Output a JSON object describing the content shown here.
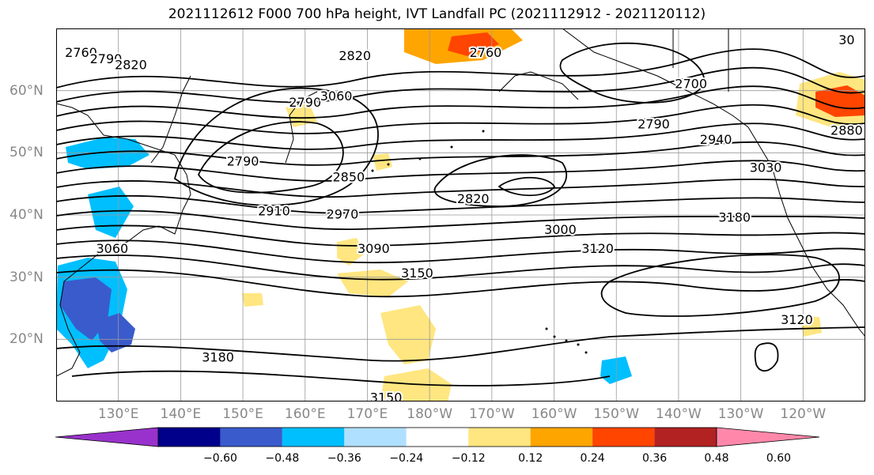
{
  "title": "2021112612 F000 700 hPa height, IVT Landfall PC (2021112912 - 2021120112)",
  "map": {
    "lon_range": [
      120,
      250
    ],
    "lat_range": [
      10,
      70
    ],
    "x_ticks": [
      "130°E",
      "140°E",
      "150°E",
      "160°E",
      "170°E",
      "180°W",
      "170°W",
      "160°W",
      "150°W",
      "140°W",
      "130°W",
      "120°W"
    ],
    "x_tick_lons": [
      130,
      140,
      150,
      160,
      170,
      180,
      190,
      200,
      210,
      220,
      230,
      240
    ],
    "y_ticks": [
      "20°N",
      "30°N",
      "40°N",
      "50°N",
      "60°N"
    ],
    "y_tick_lats": [
      20,
      30,
      40,
      50,
      60
    ],
    "contour_labels": [
      {
        "text": "2760",
        "lon": 124,
        "lat": 66
      },
      {
        "text": "2790",
        "lon": 128,
        "lat": 65
      },
      {
        "text": "2820",
        "lon": 132,
        "lat": 64
      },
      {
        "text": "2820",
        "lon": 168,
        "lat": 65.5
      },
      {
        "text": "2760",
        "lon": 189,
        "lat": 66
      },
      {
        "text": "2790",
        "lon": 160,
        "lat": 58
      },
      {
        "text": "3060",
        "lon": 165,
        "lat": 59
      },
      {
        "text": "2790",
        "lon": 150,
        "lat": 48.5
      },
      {
        "text": "2850",
        "lon": 167,
        "lat": 46
      },
      {
        "text": "2820",
        "lon": 187,
        "lat": 42.5
      },
      {
        "text": "2910",
        "lon": 155,
        "lat": 40.5
      },
      {
        "text": "2970",
        "lon": 166,
        "lat": 40
      },
      {
        "text": "3000",
        "lon": 201,
        "lat": 37.5
      },
      {
        "text": "3090",
        "lon": 171,
        "lat": 34.5
      },
      {
        "text": "3120",
        "lon": 207,
        "lat": 34.5
      },
      {
        "text": "3150",
        "lon": 178,
        "lat": 30.5
      },
      {
        "text": "3180",
        "lon": 229,
        "lat": 39.5
      },
      {
        "text": "2700",
        "lon": 222,
        "lat": 61
      },
      {
        "text": "2790",
        "lon": 216,
        "lat": 54.5
      },
      {
        "text": "2940",
        "lon": 226,
        "lat": 52
      },
      {
        "text": "2880",
        "lon": 247,
        "lat": 53.5
      },
      {
        "text": "3030",
        "lon": 234,
        "lat": 47.5
      },
      {
        "text": "3060",
        "lon": 129,
        "lat": 34.5
      },
      {
        "text": "3180",
        "lon": 146,
        "lat": 17
      },
      {
        "text": "3150",
        "lon": 173,
        "lat": 10.5
      },
      {
        "text": "3120",
        "lon": 239,
        "lat": 23
      },
      {
        "text": "30",
        "lon": 247,
        "lat": 68
      }
    ],
    "colors": {
      "line": "#000000",
      "grid": "#999999",
      "land": "#000000"
    }
  },
  "colorbar": {
    "colors": [
      "#9932cc",
      "#00008b",
      "#3a5bcc",
      "#00bfff",
      "#b0e0ff",
      "#ffffff",
      "#ffe680",
      "#ffa500",
      "#ff4500",
      "#b22222",
      "#ff88aa"
    ],
    "labels": [
      "−0.60",
      "−0.48",
      "−0.36",
      "−0.24",
      "−0.12",
      "0.12",
      "0.24",
      "0.36",
      "0.48",
      "0.60"
    ]
  }
}
